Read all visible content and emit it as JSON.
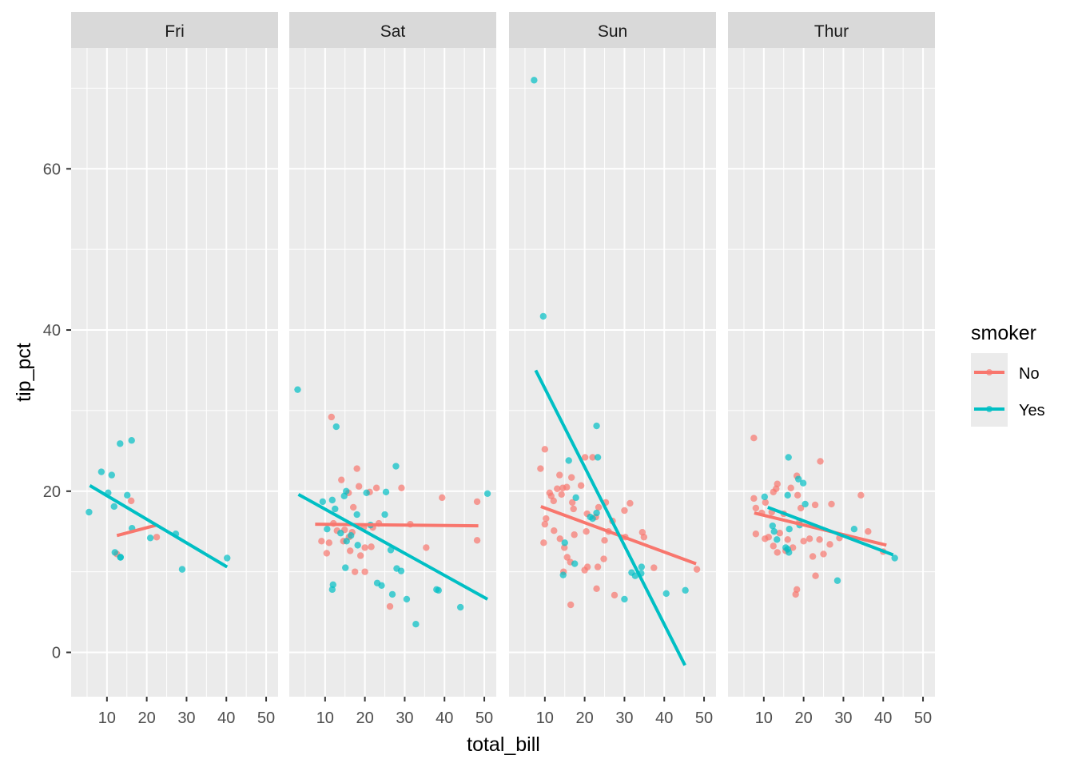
{
  "chart_data": {
    "type": "scatter",
    "title": "",
    "xlabel": "total_bill",
    "ylabel": "tip_pct",
    "facet_by": "day",
    "xlim": [
      1,
      53
    ],
    "ylim": [
      -5.5,
      75
    ],
    "x_ticks": [
      10,
      20,
      30,
      40,
      50
    ],
    "y_ticks": [
      0,
      20,
      40,
      60
    ],
    "grid": true,
    "legend": {
      "title": "smoker",
      "position": "right",
      "entries": [
        {
          "label": "No",
          "color": "#F8766D"
        },
        {
          "label": "Yes",
          "color": "#00BFC4"
        }
      ]
    },
    "panels": [
      {
        "label": "Fri",
        "series": [
          {
            "name": "No",
            "color": "#F8766D",
            "points": [
              [
                12.5,
                12.2
              ],
              [
                16.1,
                18.8
              ],
              [
                22.5,
                14.3
              ]
            ],
            "fit_line": [
              [
                12.5,
                14.5
              ],
              [
                22.5,
                15.8
              ]
            ]
          },
          {
            "name": "Yes",
            "color": "#00BFC4",
            "points": [
              [
                5.5,
                17.4
              ],
              [
                8.6,
                22.4
              ],
              [
                10.3,
                19.8
              ],
              [
                11.2,
                22.0
              ],
              [
                11.8,
                18.1
              ],
              [
                12.0,
                12.4
              ],
              [
                13.4,
                11.8
              ],
              [
                13.3,
                25.9
              ],
              [
                15.1,
                19.5
              ],
              [
                16.2,
                26.3
              ],
              [
                16.3,
                15.4
              ],
              [
                20.9,
                14.2
              ],
              [
                27.3,
                14.7
              ],
              [
                28.9,
                10.3
              ],
              [
                40.2,
                11.7
              ],
              [
                13.4,
                11.8
              ]
            ],
            "fit_line": [
              [
                5.7,
                20.7
              ],
              [
                40.2,
                10.6
              ]
            ]
          }
        ]
      },
      {
        "label": "Sat",
        "series": [
          {
            "name": "No",
            "color": "#F8766D",
            "points": [
              [
                11.6,
                29.2
              ],
              [
                14.1,
                21.4
              ],
              [
                15.9,
                19.8
              ],
              [
                17.1,
                18.0
              ],
              [
                18.0,
                22.8
              ],
              [
                14.9,
                15.2
              ],
              [
                12.1,
                16.0
              ],
              [
                10.4,
                12.3
              ],
              [
                9.1,
                13.8
              ],
              [
                11.0,
                13.6
              ],
              [
                16.8,
                14.9
              ],
              [
                19.7,
                15.5
              ],
              [
                22.9,
                20.4
              ],
              [
                21.2,
                19.9
              ],
              [
                18.5,
                20.6
              ],
              [
                14.6,
                13.8
              ],
              [
                16.3,
                12.6
              ],
              [
                13.0,
                15.1
              ],
              [
                17.5,
                10.0
              ],
              [
                20.0,
                10.0
              ],
              [
                26.3,
                5.7
              ],
              [
                29.2,
                20.4
              ],
              [
                31.4,
                15.9
              ],
              [
                35.4,
                13.0
              ],
              [
                39.4,
                19.2
              ],
              [
                48.2,
                18.7
              ],
              [
                48.2,
                13.9
              ],
              [
                21.6,
                13.1
              ],
              [
                23.5,
                16.0
              ],
              [
                18.9,
                12.0
              ],
              [
                16.0,
                14.3
              ],
              [
                20.0,
                13.0
              ],
              [
                22.0,
                15.5
              ]
            ],
            "fit_line": [
              [
                7.5,
                15.9
              ],
              [
                48.5,
                15.7
              ]
            ]
          },
          {
            "name": "Yes",
            "color": "#00BFC4",
            "points": [
              [
                3.1,
                32.6
              ],
              [
                12.8,
                28.0
              ],
              [
                9.4,
                18.7
              ],
              [
                11.8,
                18.9
              ],
              [
                14.8,
                19.4
              ],
              [
                15.3,
                20.0
              ],
              [
                10.5,
                15.3
              ],
              [
                12.5,
                17.8
              ],
              [
                13.9,
                14.8
              ],
              [
                15.4,
                13.8
              ],
              [
                18.0,
                17.1
              ],
              [
                20.4,
                19.8
              ],
              [
                25.3,
                19.9
              ],
              [
                27.8,
                23.1
              ],
              [
                25.0,
                17.1
              ],
              [
                21.4,
                15.8
              ],
              [
                15.1,
                10.5
              ],
              [
                12.0,
                8.4
              ],
              [
                11.8,
                7.8
              ],
              [
                23.1,
                8.6
              ],
              [
                24.2,
                8.3
              ],
              [
                26.5,
                12.7
              ],
              [
                28.0,
                10.4
              ],
              [
                26.9,
                7.2
              ],
              [
                30.5,
                6.6
              ],
              [
                29.1,
                10.1
              ],
              [
                32.8,
                3.5
              ],
              [
                38.0,
                7.8
              ],
              [
                38.5,
                7.7
              ],
              [
                44.0,
                5.6
              ],
              [
                50.8,
                19.7
              ],
              [
                16.5,
                14.5
              ],
              [
                18.2,
                13.3
              ]
            ],
            "fit_line": [
              [
                3.3,
                19.6
              ],
              [
                50.8,
                6.6
              ]
            ]
          }
        ]
      },
      {
        "label": "Sun",
        "series": [
          {
            "name": "No",
            "color": "#F8766D",
            "points": [
              [
                10.0,
                25.2
              ],
              [
                8.9,
                22.8
              ],
              [
                13.1,
                20.3
              ],
              [
                13.7,
                22.0
              ],
              [
                14.5,
                20.4
              ],
              [
                15.5,
                20.5
              ],
              [
                16.7,
                21.7
              ],
              [
                14.2,
                19.6
              ],
              [
                16.9,
                18.6
              ],
              [
                17.2,
                17.8
              ],
              [
                11.2,
                19.8
              ],
              [
                11.6,
                19.4
              ],
              [
                12.2,
                18.8
              ],
              [
                20.6,
                17.2
              ],
              [
                20.1,
                24.2
              ],
              [
                19.1,
                20.7
              ],
              [
                22.0,
                24.2
              ],
              [
                25.3,
                18.6
              ],
              [
                23.5,
                18.0
              ],
              [
                22.8,
                16.8
              ],
              [
                20.4,
                15.0
              ],
              [
                10.3,
                16.6
              ],
              [
                10.0,
                15.9
              ],
              [
                9.7,
                13.6
              ],
              [
                12.3,
                15.1
              ],
              [
                13.8,
                14.1
              ],
              [
                14.9,
                13.0
              ],
              [
                15.6,
                11.8
              ],
              [
                16.4,
                11.2
              ],
              [
                17.4,
                14.6
              ],
              [
                14.7,
                10.0
              ],
              [
                16.5,
                5.9
              ],
              [
                20.0,
                10.2
              ],
              [
                20.7,
                10.6
              ],
              [
                23.3,
                10.6
              ],
              [
                24.8,
                11.6
              ],
              [
                23.0,
                7.9
              ],
              [
                27.5,
                7.1
              ],
              [
                30.0,
                17.6
              ],
              [
                31.4,
                18.5
              ],
              [
                34.5,
                14.9
              ],
              [
                34.9,
                14.3
              ],
              [
                37.4,
                10.5
              ],
              [
                48.2,
                10.3
              ],
              [
                27.0,
                16.3
              ],
              [
                26.0,
                15.0
              ],
              [
                25.0,
                13.9
              ],
              [
                30.2,
                14.3
              ]
            ],
            "fit_line": [
              [
                9.0,
                18.1
              ],
              [
                48.0,
                11.0
              ]
            ]
          },
          {
            "name": "Yes",
            "color": "#00BFC4",
            "points": [
              [
                7.3,
                71.0
              ],
              [
                9.6,
                41.7
              ],
              [
                16.0,
                23.8
              ],
              [
                23.0,
                28.1
              ],
              [
                23.3,
                24.2
              ],
              [
                17.8,
                19.2
              ],
              [
                21.4,
                16.8
              ],
              [
                23.0,
                17.3
              ],
              [
                15.0,
                13.6
              ],
              [
                14.6,
                9.6
              ],
              [
                17.5,
                11.0
              ],
              [
                31.8,
                9.9
              ],
              [
                32.7,
                9.5
              ],
              [
                34.3,
                10.6
              ],
              [
                34.2,
                9.8
              ],
              [
                40.5,
                7.3
              ],
              [
                45.3,
                7.7
              ],
              [
                30.0,
                6.6
              ],
              [
                22.0,
                16.6
              ]
            ],
            "fit_line": [
              [
                7.7,
                35.0
              ],
              [
                45.2,
                -1.6
              ]
            ]
          }
        ]
      },
      {
        "label": "Thur",
        "series": [
          {
            "name": "No",
            "color": "#F8766D",
            "points": [
              [
                7.5,
                26.6
              ],
              [
                7.5,
                19.1
              ],
              [
                8.0,
                17.9
              ],
              [
                9.5,
                17.3
              ],
              [
                10.4,
                18.6
              ],
              [
                12.4,
                19.9
              ],
              [
                13.1,
                20.3
              ],
              [
                13.4,
                20.9
              ],
              [
                12.0,
                17.4
              ],
              [
                11.2,
                14.3
              ],
              [
                10.3,
                14.1
              ],
              [
                8.0,
                14.7
              ],
              [
                12.4,
                13.2
              ],
              [
                13.4,
                12.4
              ],
              [
                14.0,
                14.8
              ],
              [
                16.0,
                14.0
              ],
              [
                17.3,
                13.0
              ],
              [
                15.5,
                12.6
              ],
              [
                18.5,
                19.5
              ],
              [
                19.3,
                17.9
              ],
              [
                18.3,
                21.9
              ],
              [
                24.2,
                23.7
              ],
              [
                22.9,
                18.3
              ],
              [
                27.0,
                18.4
              ],
              [
                24.0,
                14.0
              ],
              [
                26.6,
                13.4
              ],
              [
                29.0,
                14.2
              ],
              [
                34.4,
                19.5
              ],
              [
                36.2,
                15.0
              ],
              [
                40.0,
                12.5
              ],
              [
                16.8,
                20.4
              ],
              [
                19.0,
                16.3
              ],
              [
                20.0,
                13.8
              ],
              [
                21.5,
                14.1
              ],
              [
                22.3,
                11.9
              ],
              [
                23.0,
                9.5
              ],
              [
                25.0,
                12.2
              ],
              [
                18.3,
                7.8
              ],
              [
                18.0,
                7.2
              ],
              [
                15.0,
                17.2
              ]
            ],
            "fit_line": [
              [
                7.6,
                17.3
              ],
              [
                40.8,
                13.3
              ]
            ]
          },
          {
            "name": "Yes",
            "color": "#00BFC4",
            "points": [
              [
                10.2,
                19.3
              ],
              [
                12.2,
                15.7
              ],
              [
                12.6,
                15.0
              ],
              [
                13.3,
                14.0
              ],
              [
                16.2,
                24.2
              ],
              [
                16.0,
                19.5
              ],
              [
                18.7,
                21.5
              ],
              [
                19.9,
                21.0
              ],
              [
                16.4,
                15.3
              ],
              [
                20.4,
                18.4
              ],
              [
                16.0,
                12.8
              ],
              [
                16.3,
                12.4
              ],
              [
                19.0,
                15.8
              ],
              [
                28.5,
                8.9
              ],
              [
                32.7,
                15.3
              ],
              [
                42.9,
                11.7
              ],
              [
                15.5,
                13.0
              ]
            ],
            "fit_line": [
              [
                11.0,
                18.0
              ],
              [
                42.5,
                12.1
              ]
            ]
          }
        ]
      }
    ]
  }
}
